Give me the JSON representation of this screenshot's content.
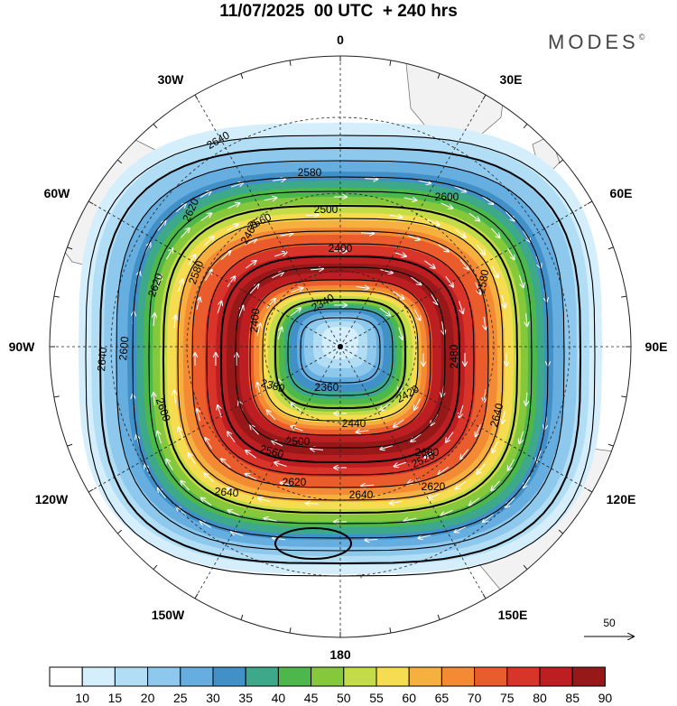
{
  "title": "11/07/2025  00 UTC  + 240 hrs",
  "brand": "MODES",
  "brand_mark": "©",
  "longitude_labels": [
    "0",
    "30E",
    "60E",
    "90E",
    "120E",
    "150E",
    "180",
    "150W",
    "120W",
    "90W",
    "60W",
    "30W"
  ],
  "contour_labels": [
    {
      "text": "2340"
    },
    {
      "text": "2360"
    },
    {
      "text": "2380"
    },
    {
      "text": "2400"
    },
    {
      "text": "2400"
    },
    {
      "text": "2420"
    },
    {
      "text": "2440"
    },
    {
      "text": "2460"
    },
    {
      "text": "2480"
    },
    {
      "text": "2500"
    },
    {
      "text": "2500"
    },
    {
      "text": "2520"
    },
    {
      "text": "2560"
    },
    {
      "text": "2560"
    },
    {
      "text": "2580"
    },
    {
      "text": "2580"
    },
    {
      "text": "2580"
    },
    {
      "text": "2600"
    },
    {
      "text": "2600"
    },
    {
      "text": "2600"
    },
    {
      "text": "2600"
    },
    {
      "text": "2620"
    },
    {
      "text": "2620"
    },
    {
      "text": "2620"
    },
    {
      "text": "2620"
    },
    {
      "text": "2640"
    },
    {
      "text": "2640"
    },
    {
      "text": "2640"
    },
    {
      "text": "2640"
    },
    {
      "text": "2640"
    }
  ],
  "reference_vector": {
    "label": "50"
  },
  "colorbar": {
    "labels": [
      "10",
      "15",
      "20",
      "25",
      "30",
      "35",
      "40",
      "45",
      "50",
      "55",
      "60",
      "65",
      "70",
      "75",
      "80",
      "85",
      "90"
    ],
    "colors": [
      "#ffffff",
      "#d4eefb",
      "#b2def5",
      "#8ec8ec",
      "#66ade0",
      "#4290c8",
      "#3da88a",
      "#4cb84c",
      "#86c83c",
      "#c4dc48",
      "#f6dc50",
      "#f6b040",
      "#f48a34",
      "#ea5c2c",
      "#d8342a",
      "#bc1e22",
      "#961818"
    ]
  },
  "chart_data": {
    "type": "map",
    "projection": "south-polar-stereographic",
    "field": "wind speed (shaded) with geopotential height contours and wind vectors",
    "shading_levels": [
      10,
      15,
      20,
      25,
      30,
      35,
      40,
      45,
      50,
      55,
      60,
      65,
      70,
      75,
      80,
      85,
      90
    ],
    "contour_levels": [
      2340,
      2360,
      2380,
      2400,
      2420,
      2440,
      2460,
      2480,
      2500,
      2520,
      2540,
      2560,
      2580,
      2600,
      2620,
      2640
    ],
    "reference_vector_value": 50
  }
}
